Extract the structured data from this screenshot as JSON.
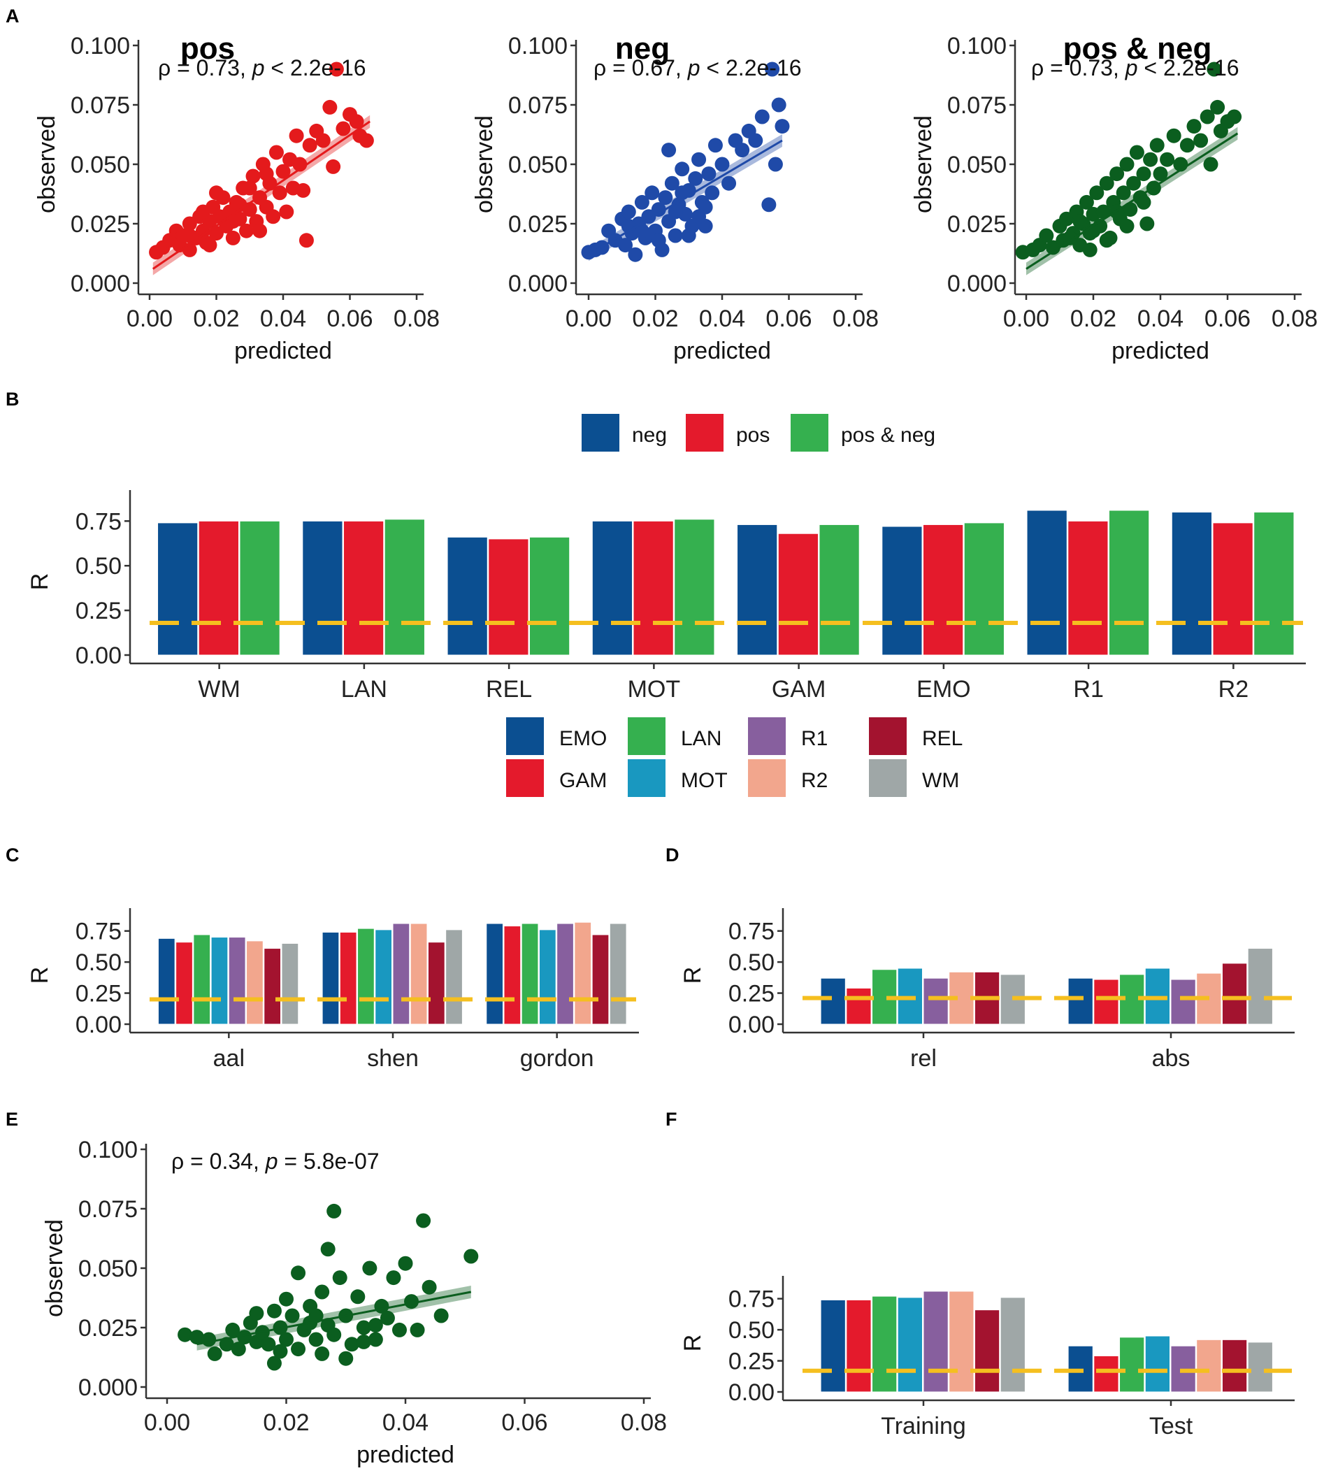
{
  "colors": {
    "pos": "#e41a1c",
    "neg": "#1f4aa8",
    "posneg": "#0b5e1f",
    "baseline": "#f5bf1f",
    "EMO": "#0b4f91",
    "GAM": "#e41a2c",
    "LAN": "#35b04f",
    "MOT": "#1998c0",
    "R1": "#875f9e",
    "R2": "#f2a68d",
    "REL": "#a3132f",
    "WM": "#9fa7a7",
    "bar_neg": "#0b4f91",
    "bar_pos": "#e41a2c",
    "bar_posneg": "#35b04f"
  },
  "panel_letters": {
    "a": "A",
    "b": "B",
    "c": "C",
    "d": "D",
    "e": "E",
    "f": "F"
  },
  "chart_data": [
    {
      "id": "A1",
      "type": "scatter",
      "title": "pos",
      "color_key": "pos",
      "annotation": {
        "rho_text": "ρ = 0.73, ",
        "p_sym": "p",
        "p_text": " < 2.2e-16"
      },
      "xlabel": "predicted",
      "ylabel": "observed",
      "xlim": [
        0,
        0.08
      ],
      "ylim": [
        0,
        0.1
      ],
      "xticks": [
        "0.00",
        "0.02",
        "0.04",
        "0.06",
        "0.08"
      ],
      "yticks": [
        "0.000",
        "0.025",
        "0.050",
        "0.075",
        "0.100"
      ],
      "fit": {
        "x0": 0.001,
        "y0": 0.006,
        "x1": 0.066,
        "y1": 0.068
      },
      "points": [
        [
          0.002,
          0.013
        ],
        [
          0.004,
          0.015
        ],
        [
          0.006,
          0.018
        ],
        [
          0.008,
          0.022
        ],
        [
          0.009,
          0.016
        ],
        [
          0.01,
          0.02
        ],
        [
          0.012,
          0.014
        ],
        [
          0.012,
          0.025
        ],
        [
          0.014,
          0.019
        ],
        [
          0.015,
          0.028
        ],
        [
          0.016,
          0.022
        ],
        [
          0.017,
          0.017
        ],
        [
          0.018,
          0.026
        ],
        [
          0.019,
          0.032
        ],
        [
          0.02,
          0.021
        ],
        [
          0.021,
          0.028
        ],
        [
          0.022,
          0.036
        ],
        [
          0.023,
          0.024
        ],
        [
          0.024,
          0.03
        ],
        [
          0.025,
          0.019
        ],
        [
          0.026,
          0.034
        ],
        [
          0.027,
          0.027
        ],
        [
          0.028,
          0.04
        ],
        [
          0.029,
          0.022
        ],
        [
          0.03,
          0.031
        ],
        [
          0.031,
          0.045
        ],
        [
          0.032,
          0.026
        ],
        [
          0.033,
          0.036
        ],
        [
          0.034,
          0.05
        ],
        [
          0.035,
          0.032
        ],
        [
          0.036,
          0.042
        ],
        [
          0.037,
          0.028
        ],
        [
          0.038,
          0.055
        ],
        [
          0.039,
          0.038
        ],
        [
          0.04,
          0.047
        ],
        [
          0.041,
          0.03
        ],
        [
          0.042,
          0.052
        ],
        [
          0.043,
          0.04
        ],
        [
          0.044,
          0.062
        ],
        [
          0.045,
          0.05
        ],
        [
          0.046,
          0.039
        ],
        [
          0.047,
          0.018
        ],
        [
          0.048,
          0.058
        ],
        [
          0.05,
          0.064
        ],
        [
          0.052,
          0.06
        ],
        [
          0.054,
          0.074
        ],
        [
          0.055,
          0.049
        ],
        [
          0.056,
          0.09
        ],
        [
          0.058,
          0.065
        ],
        [
          0.06,
          0.071
        ],
        [
          0.062,
          0.068
        ],
        [
          0.063,
          0.062
        ],
        [
          0.065,
          0.06
        ],
        [
          0.016,
          0.03
        ],
        [
          0.02,
          0.038
        ],
        [
          0.025,
          0.026
        ],
        [
          0.03,
          0.04
        ],
        [
          0.035,
          0.046
        ],
        [
          0.012,
          0.02
        ],
        [
          0.018,
          0.016
        ],
        [
          0.027,
          0.033
        ],
        [
          0.033,
          0.022
        ]
      ]
    },
    {
      "id": "A2",
      "type": "scatter",
      "title": "neg",
      "color_key": "neg",
      "annotation": {
        "rho_text": "ρ = 0.67, ",
        "p_sym": "p",
        "p_text": " < 2.2e-16"
      },
      "xlabel": "predicted",
      "ylabel": "observed",
      "xlim": [
        0,
        0.08
      ],
      "ylim": [
        0,
        0.1
      ],
      "xticks": [
        "0.00",
        "0.02",
        "0.04",
        "0.06",
        "0.08"
      ],
      "yticks": [
        "0.000",
        "0.025",
        "0.050",
        "0.075",
        "0.100"
      ],
      "fit": {
        "x0": 0.0,
        "y0": 0.012,
        "x1": 0.058,
        "y1": 0.06
      },
      "points": [
        [
          0.0,
          0.013
        ],
        [
          0.002,
          0.014
        ],
        [
          0.004,
          0.015
        ],
        [
          0.006,
          0.022
        ],
        [
          0.008,
          0.018
        ],
        [
          0.01,
          0.027
        ],
        [
          0.011,
          0.016
        ],
        [
          0.012,
          0.03
        ],
        [
          0.013,
          0.021
        ],
        [
          0.014,
          0.012
        ],
        [
          0.015,
          0.025
        ],
        [
          0.016,
          0.034
        ],
        [
          0.017,
          0.019
        ],
        [
          0.018,
          0.028
        ],
        [
          0.019,
          0.038
        ],
        [
          0.02,
          0.022
        ],
        [
          0.021,
          0.031
        ],
        [
          0.022,
          0.014
        ],
        [
          0.023,
          0.036
        ],
        [
          0.024,
          0.026
        ],
        [
          0.025,
          0.042
        ],
        [
          0.026,
          0.02
        ],
        [
          0.027,
          0.033
        ],
        [
          0.028,
          0.048
        ],
        [
          0.029,
          0.029
        ],
        [
          0.03,
          0.039
        ],
        [
          0.031,
          0.024
        ],
        [
          0.032,
          0.044
        ],
        [
          0.033,
          0.052
        ],
        [
          0.034,
          0.034
        ],
        [
          0.035,
          0.024
        ],
        [
          0.036,
          0.046
        ],
        [
          0.037,
          0.038
        ],
        [
          0.038,
          0.058
        ],
        [
          0.04,
          0.05
        ],
        [
          0.042,
          0.042
        ],
        [
          0.044,
          0.06
        ],
        [
          0.046,
          0.056
        ],
        [
          0.048,
          0.064
        ],
        [
          0.05,
          0.06
        ],
        [
          0.052,
          0.07
        ],
        [
          0.054,
          0.033
        ],
        [
          0.055,
          0.09
        ],
        [
          0.056,
          0.05
        ],
        [
          0.057,
          0.075
        ],
        [
          0.058,
          0.066
        ],
        [
          0.024,
          0.056
        ],
        [
          0.03,
          0.02
        ],
        [
          0.018,
          0.02
        ],
        [
          0.026,
          0.03
        ],
        [
          0.035,
          0.032
        ],
        [
          0.016,
          0.022
        ],
        [
          0.021,
          0.018
        ],
        [
          0.033,
          0.028
        ],
        [
          0.028,
          0.038
        ],
        [
          0.012,
          0.024
        ]
      ]
    },
    {
      "id": "A3",
      "type": "scatter",
      "title": "pos & neg",
      "color_key": "posneg",
      "annotation": {
        "rho_text": "ρ = 0.73, ",
        "p_sym": "p",
        "p_text": " < 2.2e-16"
      },
      "xlabel": "predicted",
      "ylabel": "observed",
      "xlim": [
        0,
        0.08
      ],
      "ylim": [
        0,
        0.1
      ],
      "xticks": [
        "0.00",
        "0.02",
        "0.04",
        "0.06",
        "0.08"
      ],
      "yticks": [
        "0.000",
        "0.025",
        "0.050",
        "0.075",
        "0.100"
      ],
      "fit": {
        "x0": 0.0,
        "y0": 0.006,
        "x1": 0.063,
        "y1": 0.063
      },
      "points": [
        [
          -0.001,
          0.013
        ],
        [
          0.002,
          0.014
        ],
        [
          0.004,
          0.016
        ],
        [
          0.006,
          0.02
        ],
        [
          0.008,
          0.015
        ],
        [
          0.01,
          0.024
        ],
        [
          0.011,
          0.018
        ],
        [
          0.012,
          0.027
        ],
        [
          0.014,
          0.021
        ],
        [
          0.015,
          0.03
        ],
        [
          0.016,
          0.016
        ],
        [
          0.017,
          0.025
        ],
        [
          0.018,
          0.034
        ],
        [
          0.019,
          0.021
        ],
        [
          0.02,
          0.029
        ],
        [
          0.021,
          0.038
        ],
        [
          0.022,
          0.024
        ],
        [
          0.023,
          0.03
        ],
        [
          0.024,
          0.042
        ],
        [
          0.025,
          0.019
        ],
        [
          0.026,
          0.034
        ],
        [
          0.027,
          0.046
        ],
        [
          0.028,
          0.027
        ],
        [
          0.029,
          0.038
        ],
        [
          0.03,
          0.05
        ],
        [
          0.031,
          0.031
        ],
        [
          0.032,
          0.042
        ],
        [
          0.033,
          0.055
        ],
        [
          0.034,
          0.036
        ],
        [
          0.035,
          0.046
        ],
        [
          0.036,
          0.025
        ],
        [
          0.037,
          0.052
        ],
        [
          0.038,
          0.04
        ],
        [
          0.039,
          0.058
        ],
        [
          0.04,
          0.046
        ],
        [
          0.042,
          0.052
        ],
        [
          0.044,
          0.062
        ],
        [
          0.046,
          0.05
        ],
        [
          0.048,
          0.058
        ],
        [
          0.05,
          0.066
        ],
        [
          0.052,
          0.06
        ],
        [
          0.054,
          0.07
        ],
        [
          0.055,
          0.05
        ],
        [
          0.056,
          0.09
        ],
        [
          0.057,
          0.074
        ],
        [
          0.058,
          0.064
        ],
        [
          0.06,
          0.068
        ],
        [
          0.062,
          0.07
        ],
        [
          0.019,
          0.014
        ],
        [
          0.024,
          0.018
        ],
        [
          0.03,
          0.024
        ],
        [
          0.016,
          0.026
        ],
        [
          0.027,
          0.03
        ],
        [
          0.035,
          0.034
        ],
        [
          0.02,
          0.022
        ],
        [
          0.013,
          0.019
        ]
      ]
    },
    {
      "id": "B",
      "type": "bar",
      "ylabel": "R",
      "ylim": [
        0,
        0.9
      ],
      "yticks": [
        "0.00",
        "0.25",
        "0.50",
        "0.75"
      ],
      "baseline": 0.18,
      "categories": [
        "WM",
        "LAN",
        "REL",
        "MOT",
        "GAM",
        "EMO",
        "R1",
        "R2"
      ],
      "series": [
        {
          "name": "neg",
          "color_key": "bar_neg",
          "values": [
            0.74,
            0.75,
            0.66,
            0.75,
            0.73,
            0.72,
            0.81,
            0.8
          ]
        },
        {
          "name": "pos",
          "color_key": "bar_pos",
          "values": [
            0.75,
            0.75,
            0.65,
            0.75,
            0.68,
            0.73,
            0.75,
            0.74
          ]
        },
        {
          "name": "pos & neg",
          "color_key": "bar_posneg",
          "values": [
            0.75,
            0.76,
            0.66,
            0.76,
            0.73,
            0.74,
            0.81,
            0.8
          ]
        }
      ],
      "legend": [
        "neg",
        "pos",
        "pos & neg"
      ]
    },
    {
      "id": "legend_tasks",
      "type": "legend",
      "entries": [
        [
          "EMO",
          "LAN",
          "R1",
          "REL"
        ],
        [
          "GAM",
          "MOT",
          "R2",
          "WM"
        ]
      ]
    },
    {
      "id": "C",
      "type": "bar",
      "ylabel": "R",
      "ylim": [
        0,
        0.9
      ],
      "yticks": [
        "0.00",
        "0.25",
        "0.50",
        "0.75"
      ],
      "baseline": 0.2,
      "categories": [
        "aal",
        "shen",
        "gordon"
      ],
      "series_names": [
        "EMO",
        "GAM",
        "LAN",
        "MOT",
        "R1",
        "R2",
        "REL",
        "WM"
      ],
      "values": [
        [
          0.69,
          0.66,
          0.72,
          0.7,
          0.7,
          0.67,
          0.61,
          0.65
        ],
        [
          0.74,
          0.74,
          0.77,
          0.76,
          0.81,
          0.81,
          0.66,
          0.76
        ],
        [
          0.81,
          0.79,
          0.81,
          0.76,
          0.81,
          0.82,
          0.72,
          0.81
        ]
      ]
    },
    {
      "id": "D",
      "type": "bar",
      "ylabel": "R",
      "ylim": [
        0,
        0.9
      ],
      "yticks": [
        "0.00",
        "0.25",
        "0.50",
        "0.75"
      ],
      "baseline": 0.21,
      "categories": [
        "rel",
        "abs"
      ],
      "series_names": [
        "EMO",
        "GAM",
        "LAN",
        "MOT",
        "R1",
        "R2",
        "REL",
        "WM"
      ],
      "values": [
        [
          0.37,
          0.29,
          0.44,
          0.45,
          0.37,
          0.42,
          0.42,
          0.4
        ],
        [
          0.37,
          0.36,
          0.4,
          0.45,
          0.36,
          0.41,
          0.49,
          0.61
        ]
      ]
    },
    {
      "id": "E",
      "type": "scatter",
      "title": "",
      "color_key": "posneg",
      "annotation": {
        "rho_text": "ρ = 0.34, ",
        "p_sym": "p",
        "p_text": " = 5.8e-07"
      },
      "xlabel": "predicted",
      "ylabel": "observed",
      "xlim": [
        0,
        0.08
      ],
      "ylim": [
        0,
        0.1
      ],
      "xticks": [
        "0.00",
        "0.02",
        "0.04",
        "0.06",
        "0.08"
      ],
      "yticks": [
        "0.000",
        "0.025",
        "0.050",
        "0.075",
        "0.100"
      ],
      "fit": {
        "x0": 0.005,
        "y0": 0.018,
        "x1": 0.051,
        "y1": 0.04
      },
      "points": [
        [
          0.003,
          0.022
        ],
        [
          0.005,
          0.021
        ],
        [
          0.007,
          0.02
        ],
        [
          0.008,
          0.014
        ],
        [
          0.01,
          0.018
        ],
        [
          0.011,
          0.024
        ],
        [
          0.012,
          0.016
        ],
        [
          0.013,
          0.021
        ],
        [
          0.014,
          0.027
        ],
        [
          0.015,
          0.019
        ],
        [
          0.016,
          0.023
        ],
        [
          0.017,
          0.018
        ],
        [
          0.018,
          0.032
        ],
        [
          0.018,
          0.01
        ],
        [
          0.019,
          0.025
        ],
        [
          0.02,
          0.02
        ],
        [
          0.021,
          0.03
        ],
        [
          0.022,
          0.016
        ],
        [
          0.022,
          0.048
        ],
        [
          0.023,
          0.024
        ],
        [
          0.024,
          0.034
        ],
        [
          0.025,
          0.02
        ],
        [
          0.026,
          0.04
        ],
        [
          0.026,
          0.014
        ],
        [
          0.027,
          0.058
        ],
        [
          0.027,
          0.026
        ],
        [
          0.028,
          0.074
        ],
        [
          0.028,
          0.022
        ],
        [
          0.029,
          0.046
        ],
        [
          0.03,
          0.03
        ],
        [
          0.031,
          0.018
        ],
        [
          0.032,
          0.038
        ],
        [
          0.033,
          0.025
        ],
        [
          0.034,
          0.05
        ],
        [
          0.035,
          0.02
        ],
        [
          0.036,
          0.034
        ],
        [
          0.037,
          0.029
        ],
        [
          0.038,
          0.046
        ],
        [
          0.039,
          0.024
        ],
        [
          0.04,
          0.052
        ],
        [
          0.041,
          0.036
        ],
        [
          0.042,
          0.024
        ],
        [
          0.043,
          0.07
        ],
        [
          0.044,
          0.042
        ],
        [
          0.046,
          0.03
        ],
        [
          0.051,
          0.055
        ],
        [
          0.015,
          0.031
        ],
        [
          0.02,
          0.037
        ],
        [
          0.024,
          0.027
        ],
        [
          0.03,
          0.012
        ],
        [
          0.035,
          0.026
        ],
        [
          0.025,
          0.03
        ],
        [
          0.019,
          0.015
        ],
        [
          0.033,
          0.019
        ]
      ]
    },
    {
      "id": "F",
      "type": "bar",
      "ylabel": "R",
      "ylim": [
        0,
        0.9
      ],
      "yticks": [
        "0.00",
        "0.25",
        "0.50",
        "0.75"
      ],
      "baseline": 0.17,
      "categories": [
        "Training",
        "Test"
      ],
      "series_names": [
        "EMO",
        "GAM",
        "LAN",
        "MOT",
        "R1",
        "R2",
        "REL",
        "WM"
      ],
      "values": [
        [
          0.74,
          0.74,
          0.77,
          0.76,
          0.81,
          0.81,
          0.66,
          0.76
        ],
        [
          0.37,
          0.29,
          0.44,
          0.45,
          0.37,
          0.42,
          0.42,
          0.4
        ]
      ]
    }
  ]
}
